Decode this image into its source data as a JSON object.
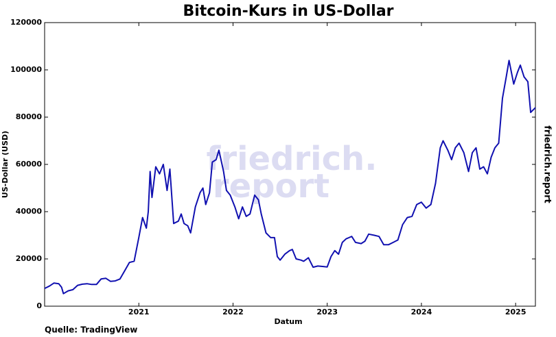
{
  "chart_data": {
    "type": "line",
    "title": "Bitcoin-Kurs in US-Dollar",
    "x_label": "Datum",
    "y_label": "US-Dollar (USD)",
    "source": "Quelle: TradingView",
    "brand": "friedrich.report",
    "watermark": [
      "friedrich.",
      "report"
    ],
    "xlim": [
      2020.0,
      2025.21
    ],
    "xticks": [
      2021,
      2022,
      2023,
      2024,
      2025
    ],
    "ylim": [
      0,
      120000
    ],
    "yticks": [
      0,
      20000,
      40000,
      60000,
      80000,
      100000,
      120000
    ],
    "grid": false,
    "x": [
      2020.0,
      2020.05,
      2020.1,
      2020.15,
      2020.18,
      2020.2,
      2020.25,
      2020.3,
      2020.35,
      2020.4,
      2020.45,
      2020.5,
      2020.55,
      2020.6,
      2020.65,
      2020.7,
      2020.75,
      2020.8,
      2020.85,
      2020.9,
      2020.95,
      2021.0,
      2021.04,
      2021.08,
      2021.1,
      2021.12,
      2021.14,
      2021.18,
      2021.22,
      2021.26,
      2021.3,
      2021.33,
      2021.37,
      2021.42,
      2021.45,
      2021.48,
      2021.52,
      2021.55,
      2021.6,
      2021.65,
      2021.68,
      2021.71,
      2021.75,
      2021.78,
      2021.82,
      2021.85,
      2021.9,
      2021.93,
      2021.97,
      2022.02,
      2022.06,
      2022.1,
      2022.14,
      2022.18,
      2022.23,
      2022.27,
      2022.3,
      2022.35,
      2022.4,
      2022.44,
      2022.47,
      2022.5,
      2022.55,
      2022.6,
      2022.63,
      2022.67,
      2022.72,
      2022.75,
      2022.8,
      2022.85,
      2022.9,
      2022.95,
      2023.0,
      2023.04,
      2023.08,
      2023.12,
      2023.16,
      2023.2,
      2023.26,
      2023.3,
      2023.36,
      2023.4,
      2023.44,
      2023.5,
      2023.55,
      2023.6,
      2023.65,
      2023.7,
      2023.75,
      2023.8,
      2023.85,
      2023.9,
      2023.95,
      2024.0,
      2024.05,
      2024.1,
      2024.15,
      2024.2,
      2024.23,
      2024.28,
      2024.32,
      2024.36,
      2024.4,
      2024.45,
      2024.5,
      2024.54,
      2024.58,
      2024.62,
      2024.66,
      2024.7,
      2024.74,
      2024.78,
      2024.82,
      2024.86,
      2024.9,
      2024.93,
      2024.98,
      2025.02,
      2025.05,
      2025.09,
      2025.13,
      2025.16,
      2025.21
    ],
    "series": [
      {
        "name": "Bitcoin",
        "color": "#1010b0",
        "values": [
          7500,
          8500,
          9800,
          9500,
          8000,
          5300,
          6500,
          7000,
          8800,
          9300,
          9500,
          9200,
          9200,
          11500,
          11800,
          10500,
          10700,
          11500,
          15000,
          18500,
          19000,
          29000,
          37500,
          33000,
          40000,
          57000,
          46000,
          59000,
          56000,
          60000,
          49000,
          58000,
          35000,
          36000,
          39000,
          35000,
          34000,
          31000,
          42000,
          48000,
          50000,
          43000,
          48000,
          61000,
          62000,
          66000,
          57000,
          49000,
          47000,
          42000,
          37000,
          42000,
          38000,
          39000,
          47000,
          45000,
          39000,
          31000,
          29000,
          29000,
          21000,
          19500,
          22000,
          23500,
          24000,
          20000,
          19500,
          19000,
          20500,
          16500,
          17000,
          16800,
          16600,
          21000,
          23500,
          22000,
          27000,
          28500,
          29500,
          27000,
          26500,
          27500,
          30500,
          30000,
          29500,
          26000,
          26000,
          27000,
          28000,
          34500,
          37500,
          38000,
          43000,
          44000,
          41500,
          43000,
          52000,
          67000,
          70000,
          66000,
          62000,
          67000,
          69000,
          65000,
          57000,
          65000,
          67000,
          58000,
          59000,
          56000,
          63000,
          67000,
          69000,
          88000,
          97000,
          104000,
          94000,
          99000,
          102000,
          97000,
          95000,
          82000,
          84000
        ]
      }
    ]
  }
}
